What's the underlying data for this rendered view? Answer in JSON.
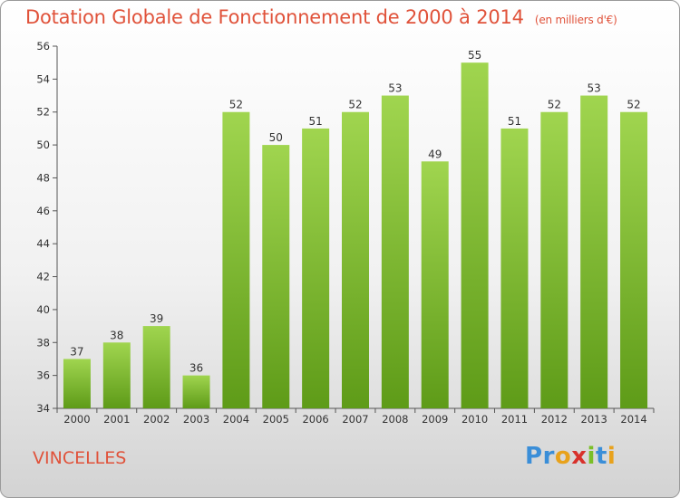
{
  "header": {
    "title": "Dotation Globale de Fonctionnement de 2000 à 2014",
    "unit": "(en milliers d'€)"
  },
  "footer": {
    "commune": "VINCELLES"
  },
  "logo": {
    "text": "Proxiti",
    "letter_colors": [
      "#3a8ed8",
      "#3a8ed8",
      "#e8a21c",
      "#d8312b",
      "#7bbf28",
      "#3a8ed8",
      "#e8a21c"
    ]
  },
  "colors": {
    "bar_top": "#a0d54f",
    "bar_bottom": "#5e9b18",
    "accent": "#e0523a"
  },
  "chart_data": {
    "type": "bar",
    "categories": [
      "2000",
      "2001",
      "2002",
      "2003",
      "2004",
      "2005",
      "2006",
      "2007",
      "2008",
      "2009",
      "2010",
      "2011",
      "2012",
      "2013",
      "2014"
    ],
    "values": [
      37,
      38,
      39,
      36,
      52,
      50,
      51,
      52,
      53,
      49,
      55,
      51,
      52,
      53,
      52
    ],
    "title": "Dotation Globale de Fonctionnement de 2000 à 2014",
    "ylim": [
      34,
      56
    ],
    "yticks": [
      34,
      36,
      38,
      40,
      42,
      44,
      46,
      48,
      50,
      52,
      54,
      56
    ],
    "grid": false,
    "data_labels": true
  }
}
